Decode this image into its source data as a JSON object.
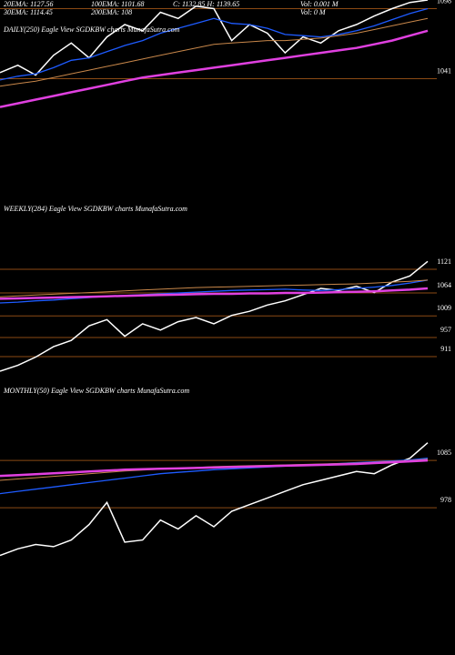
{
  "chart_data": [
    {
      "type": "line",
      "title": "DAILY(250) Eagle  View  SGDKBW charts MunafaSutra.com",
      "annotations": [
        "20EMA: 1127.56",
        "100EMA: 1101.68",
        "C: 1132.85  H: 1139.65",
        "Vol: 0.001 M",
        "30EMA: 1114.45",
        "200EMA: 108",
        "Vol: 0  M"
      ],
      "ylim": [
        946,
        1105
      ],
      "yticks": [
        1098,
        1041
      ],
      "series": [
        {
          "color": "#ffffff",
          "values": [
            1046,
            1052,
            1044,
            1060,
            1070,
            1058,
            1075,
            1085,
            1080,
            1095,
            1090,
            1100,
            1098,
            1072,
            1085,
            1078,
            1062,
            1075,
            1070,
            1080,
            1085,
            1092,
            1098,
            1103,
            1105
          ]
        },
        {
          "color": "#1e5bff",
          "values": [
            1040,
            1043,
            1045,
            1050,
            1056,
            1058,
            1063,
            1068,
            1072,
            1078,
            1082,
            1086,
            1090,
            1086,
            1085,
            1082,
            1077,
            1076,
            1075,
            1077,
            1080,
            1084,
            1089,
            1094,
            1098
          ]
        },
        {
          "color": "#c8874a",
          "values": [
            1035,
            1037,
            1039,
            1042,
            1045,
            1048,
            1051,
            1054,
            1057,
            1060,
            1063,
            1066,
            1069,
            1070,
            1071,
            1072,
            1072,
            1073,
            1074,
            1076,
            1078,
            1081,
            1084,
            1087,
            1090
          ]
        },
        {
          "color": "#e040e0",
          "values": [
            1018,
            1021,
            1024,
            1027,
            1030,
            1033,
            1036,
            1039,
            1042,
            1044,
            1046,
            1048,
            1050,
            1052,
            1054,
            1056,
            1058,
            1060,
            1062,
            1064,
            1066,
            1069,
            1072,
            1076,
            1080
          ]
        }
      ]
    },
    {
      "type": "line",
      "title": "WEEKLY(284) Eagle  View  SGDKBW charts MunafaSutra.com",
      "ylim": [
        828,
        1298
      ],
      "yticks": [
        1121,
        1064,
        1009,
        957,
        911
      ],
      "series": [
        {
          "color": "#ffffff",
          "values": [
            876,
            890,
            910,
            935,
            950,
            985,
            1000,
            960,
            990,
            975,
            995,
            1005,
            990,
            1010,
            1020,
            1035,
            1045,
            1060,
            1075,
            1070,
            1080,
            1065,
            1090,
            1105,
            1140
          ]
        },
        {
          "color": "#1e5bff",
          "values": [
            1040,
            1042,
            1045,
            1047,
            1050,
            1053,
            1056,
            1058,
            1060,
            1062,
            1064,
            1066,
            1068,
            1070,
            1071,
            1072,
            1073,
            1071,
            1070,
            1072,
            1075,
            1078,
            1082,
            1088,
            1095
          ]
        },
        {
          "color": "#c8874a",
          "values": [
            1055,
            1057,
            1059,
            1061,
            1063,
            1065,
            1067,
            1069,
            1071,
            1073,
            1075,
            1077,
            1078,
            1079,
            1080,
            1081,
            1082,
            1083,
            1084,
            1085,
            1086,
            1088,
            1090,
            1092,
            1095
          ]
        },
        {
          "color": "#e040e0",
          "values": [
            1050,
            1051,
            1052,
            1053,
            1054,
            1055,
            1056,
            1057,
            1058,
            1059,
            1060,
            1061,
            1062,
            1062,
            1063,
            1063,
            1064,
            1064,
            1065,
            1066,
            1067,
            1068,
            1070,
            1072,
            1075
          ]
        }
      ]
    },
    {
      "type": "line",
      "title": "MONTHLY(50) Eagle  View  SGDKBW charts MunafaSutra.com",
      "ylim": [
        645,
        1221
      ],
      "yticks": [
        1085,
        978
      ],
      "series": [
        {
          "color": "#ffffff",
          "values": [
            870,
            885,
            895,
            890,
            905,
            940,
            990,
            900,
            905,
            950,
            930,
            960,
            935,
            970,
            985,
            1000,
            1015,
            1030,
            1040,
            1050,
            1060,
            1055,
            1075,
            1090,
            1125
          ]
        },
        {
          "color": "#1e5bff",
          "values": [
            1010,
            1015,
            1020,
            1025,
            1030,
            1035,
            1040,
            1045,
            1050,
            1055,
            1058,
            1061,
            1064,
            1066,
            1068,
            1070,
            1072,
            1074,
            1076,
            1078,
            1080,
            1082,
            1084,
            1086,
            1090
          ]
        },
        {
          "color": "#c8874a",
          "values": [
            1040,
            1043,
            1046,
            1049,
            1052,
            1055,
            1058,
            1061,
            1063,
            1065,
            1067,
            1069,
            1071,
            1072,
            1073,
            1074,
            1075,
            1076,
            1077,
            1078,
            1079,
            1081,
            1083,
            1085,
            1088
          ]
        },
        {
          "color": "#e040e0",
          "values": [
            1050,
            1052,
            1054,
            1056,
            1058,
            1060,
            1062,
            1064,
            1065,
            1066,
            1067,
            1068,
            1069,
            1070,
            1071,
            1072,
            1073,
            1074,
            1075,
            1076,
            1077,
            1079,
            1081,
            1083,
            1085
          ]
        }
      ]
    }
  ]
}
